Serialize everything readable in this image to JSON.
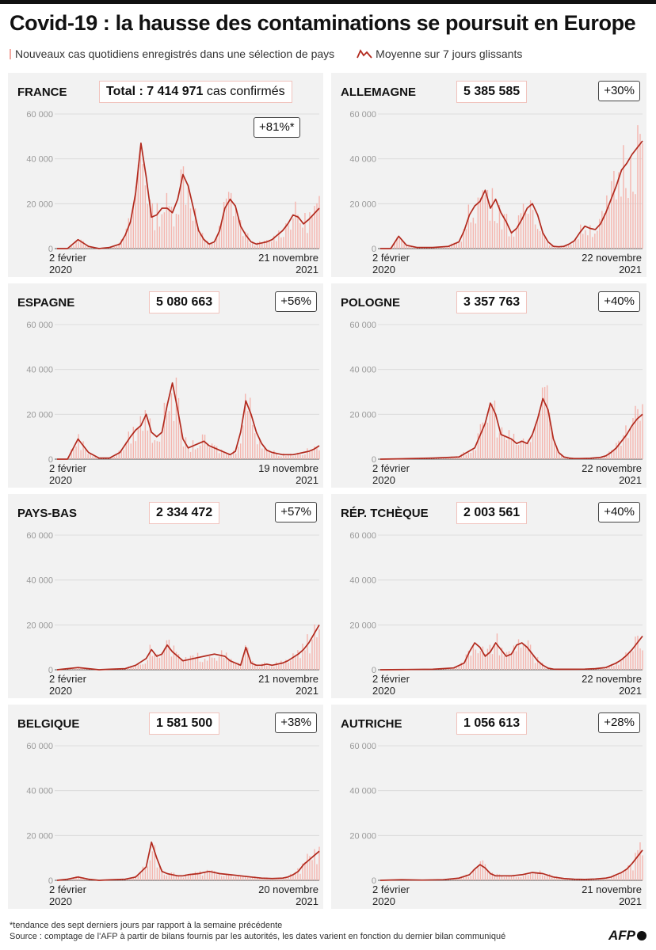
{
  "title": "Covid-19 : la hausse des contaminations se poursuit en Europe",
  "legend": {
    "bars": "Nouveaux cas quotidiens enregistrés dans une sélection de pays",
    "line": "Moyenne sur 7 jours glissants"
  },
  "colors": {
    "bars": "#f2a9a1",
    "line": "#b22a1e",
    "panel": "#f2f2f2"
  },
  "chart_data": [
    {
      "type": "line",
      "country": "FRANCE",
      "total_prefix": "Total :",
      "total": "7 414 971",
      "total_label": "cas confirmés",
      "change": "+81%*",
      "x_start": [
        "2 février",
        "2020"
      ],
      "x_end": [
        "21 novembre",
        "2021"
      ],
      "yticks": [
        "0",
        "20 000",
        "40 000",
        "60 000"
      ],
      "ylim": [
        0,
        60000
      ],
      "x": [
        0,
        4,
        8,
        12,
        16,
        20,
        24,
        26,
        28,
        30,
        32,
        34,
        36,
        38,
        40,
        42,
        44,
        46,
        48,
        50,
        52,
        54,
        56,
        58,
        60,
        62,
        64,
        66,
        68,
        70,
        72,
        74,
        76,
        78,
        80,
        82,
        84,
        86,
        88,
        90,
        92,
        94,
        96,
        100
      ],
      "y": [
        0,
        0,
        4000,
        1000,
        0,
        500,
        2000,
        6000,
        12000,
        25000,
        47000,
        32000,
        14000,
        15000,
        18000,
        18000,
        16000,
        22000,
        33000,
        28000,
        18000,
        8000,
        4000,
        2000,
        3000,
        8000,
        18000,
        22000,
        19000,
        10000,
        6000,
        3000,
        2000,
        2500,
        3000,
        4000,
        6000,
        8000,
        11000,
        15000,
        14000,
        11000,
        13000,
        18000
      ]
    },
    {
      "type": "line",
      "country": "ALLEMAGNE",
      "total": "5 385 585",
      "change": "+30%",
      "x_start": [
        "2 février",
        "2020"
      ],
      "x_end": [
        "22 novembre",
        "2021"
      ],
      "yticks": [
        "0",
        "20 000",
        "40 000",
        "60 000"
      ],
      "ylim": [
        0,
        60000
      ],
      "x": [
        0,
        4,
        7,
        10,
        14,
        20,
        26,
        30,
        32,
        34,
        36,
        38,
        40,
        42,
        44,
        46,
        48,
        50,
        52,
        54,
        56,
        58,
        60,
        62,
        64,
        66,
        68,
        70,
        72,
        74,
        76,
        78,
        80,
        82,
        84,
        86,
        88,
        90,
        92,
        94,
        96,
        98,
        100
      ],
      "y": [
        0,
        0,
        5500,
        1500,
        500,
        500,
        1000,
        3000,
        8000,
        15000,
        19000,
        21000,
        26000,
        18000,
        22000,
        16000,
        12000,
        7000,
        9000,
        13000,
        18000,
        20000,
        15000,
        7000,
        3000,
        1000,
        800,
        1000,
        2000,
        3500,
        7000,
        10000,
        9000,
        8500,
        11000,
        16000,
        22000,
        28000,
        35000,
        38000,
        42000,
        45000,
        48000
      ]
    },
    {
      "type": "line",
      "country": "ESPAGNE",
      "total": "5 080 663",
      "change": "+56%",
      "x_start": [
        "2 février",
        "2020"
      ],
      "x_end": [
        "19 novembre",
        "2021"
      ],
      "yticks": [
        "0",
        "20 000",
        "40 000",
        "60 000"
      ],
      "ylim": [
        0,
        60000
      ],
      "x": [
        0,
        4,
        8,
        12,
        16,
        20,
        24,
        28,
        30,
        32,
        34,
        36,
        38,
        40,
        42,
        44,
        46,
        48,
        50,
        52,
        54,
        56,
        58,
        60,
        62,
        64,
        66,
        68,
        70,
        72,
        74,
        76,
        78,
        80,
        82,
        84,
        86,
        88,
        90,
        92,
        94,
        96,
        98,
        100
      ],
      "y": [
        0,
        0,
        9000,
        3000,
        500,
        500,
        3000,
        10000,
        13000,
        15000,
        20000,
        12000,
        10000,
        12000,
        24000,
        34000,
        22000,
        9000,
        5000,
        6000,
        7000,
        8000,
        6000,
        5000,
        4000,
        3000,
        2000,
        3500,
        12000,
        26000,
        20000,
        12000,
        7000,
        4000,
        3000,
        2500,
        2000,
        2000,
        2000,
        2500,
        3000,
        3500,
        4500,
        6000
      ]
    },
    {
      "type": "line",
      "country": "POLOGNE",
      "total": "3 357 763",
      "change": "+40%",
      "x_start": [
        "2 février",
        "2020"
      ],
      "x_end": [
        "22 novembre",
        "2021"
      ],
      "yticks": [
        "0",
        "20 000",
        "40 000",
        "60 000"
      ],
      "ylim": [
        0,
        60000
      ],
      "x": [
        0,
        10,
        20,
        30,
        36,
        40,
        42,
        44,
        46,
        48,
        50,
        52,
        54,
        56,
        58,
        60,
        62,
        64,
        66,
        68,
        70,
        72,
        74,
        76,
        80,
        84,
        86,
        88,
        90,
        92,
        94,
        96,
        98,
        100
      ],
      "y": [
        0,
        200,
        500,
        1000,
        5000,
        16000,
        25000,
        20000,
        11000,
        10000,
        9000,
        7000,
        8000,
        7000,
        11000,
        18000,
        27000,
        22000,
        9000,
        3000,
        1000,
        500,
        300,
        300,
        400,
        800,
        1500,
        3000,
        5000,
        8000,
        11000,
        15000,
        18000,
        20000
      ]
    },
    {
      "type": "line",
      "country": "PAYS-BAS",
      "total": "2 334 472",
      "change": "+57%",
      "x_start": [
        "2 février",
        "2020"
      ],
      "x_end": [
        "21 novembre",
        "2021"
      ],
      "yticks": [
        "0",
        "20 000",
        "40 000",
        "60 000"
      ],
      "ylim": [
        0,
        60000
      ],
      "x": [
        0,
        4,
        8,
        12,
        16,
        20,
        26,
        30,
        34,
        36,
        38,
        40,
        42,
        44,
        46,
        48,
        50,
        52,
        56,
        60,
        64,
        66,
        68,
        70,
        72,
        74,
        76,
        78,
        80,
        82,
        84,
        86,
        88,
        90,
        92,
        94,
        96,
        98,
        100
      ],
      "y": [
        0,
        500,
        1000,
        500,
        0,
        200,
        500,
        2000,
        5000,
        9000,
        6000,
        7000,
        11000,
        8000,
        6000,
        4000,
        4500,
        5000,
        6000,
        7000,
        6000,
        4000,
        3000,
        2000,
        10000,
        3000,
        2000,
        2000,
        2500,
        2000,
        2500,
        3000,
        4000,
        5500,
        7000,
        9000,
        12000,
        16000,
        20000
      ]
    },
    {
      "type": "line",
      "country": "RÉP. TCHÈQUE",
      "total": "2 003 561",
      "change": "+40%",
      "x_start": [
        "2 février",
        "2020"
      ],
      "x_end": [
        "22 novembre",
        "2021"
      ],
      "yticks": [
        "0",
        "20 000",
        "40 000",
        "60 000"
      ],
      "ylim": [
        0,
        60000
      ],
      "x": [
        0,
        10,
        20,
        28,
        32,
        34,
        36,
        38,
        40,
        42,
        44,
        46,
        48,
        50,
        52,
        54,
        56,
        58,
        60,
        62,
        64,
        66,
        68,
        70,
        74,
        78,
        82,
        86,
        88,
        90,
        92,
        94,
        96,
        98,
        100
      ],
      "y": [
        0,
        100,
        200,
        800,
        3000,
        8000,
        12000,
        10000,
        6000,
        8000,
        12000,
        9000,
        6000,
        7000,
        11000,
        12000,
        10000,
        7000,
        4000,
        2000,
        700,
        300,
        200,
        200,
        200,
        300,
        500,
        1000,
        2000,
        3000,
        4500,
        6500,
        9000,
        12000,
        15000
      ]
    },
    {
      "type": "line",
      "country": "BELGIQUE",
      "total": "1 581 500",
      "change": "+38%",
      "x_start": [
        "2 février",
        "2020"
      ],
      "x_end": [
        "20 novembre",
        "2021"
      ],
      "yticks": [
        "0",
        "20 000",
        "40 000",
        "60 000"
      ],
      "ylim": [
        0,
        60000
      ],
      "x": [
        0,
        4,
        8,
        12,
        16,
        20,
        26,
        30,
        34,
        36,
        38,
        40,
        42,
        44,
        46,
        48,
        50,
        54,
        58,
        62,
        66,
        70,
        74,
        78,
        82,
        86,
        88,
        90,
        92,
        94,
        96,
        98,
        100
      ],
      "y": [
        0,
        500,
        1500,
        500,
        0,
        200,
        500,
        1500,
        6000,
        17000,
        10000,
        4000,
        3000,
        2500,
        2000,
        2000,
        2500,
        3000,
        4000,
        3000,
        2500,
        2000,
        1500,
        1000,
        800,
        1000,
        1500,
        2500,
        4000,
        7000,
        9000,
        11000,
        13000
      ]
    },
    {
      "type": "line",
      "country": "AUTRICHE",
      "total": "1 056 613",
      "change": "+28%",
      "x_start": [
        "2 février",
        "2020"
      ],
      "x_end": [
        "21 novembre",
        "2021"
      ],
      "yticks": [
        "0",
        "20 000",
        "40 000",
        "60 000"
      ],
      "ylim": [
        0,
        60000
      ],
      "x": [
        0,
        8,
        16,
        24,
        30,
        34,
        36,
        38,
        40,
        42,
        44,
        46,
        50,
        54,
        58,
        62,
        66,
        70,
        74,
        78,
        82,
        86,
        88,
        90,
        92,
        94,
        96,
        98,
        100
      ],
      "y": [
        0,
        300,
        100,
        300,
        1000,
        2500,
        5000,
        7000,
        5500,
        3000,
        2000,
        2000,
        2000,
        2500,
        3500,
        3000,
        1500,
        800,
        500,
        400,
        600,
        1000,
        1500,
        2500,
        3500,
        5000,
        7500,
        10500,
        13500
      ]
    }
  ],
  "footer": {
    "note": "*tendance des sept derniers jours par rapport à la semaine précédente",
    "source": "Source : comptage de l'AFP à partir de bilans fournis par les autorités, les dates varient en fonction du dernier bilan communiqué"
  },
  "logo": "AFP"
}
